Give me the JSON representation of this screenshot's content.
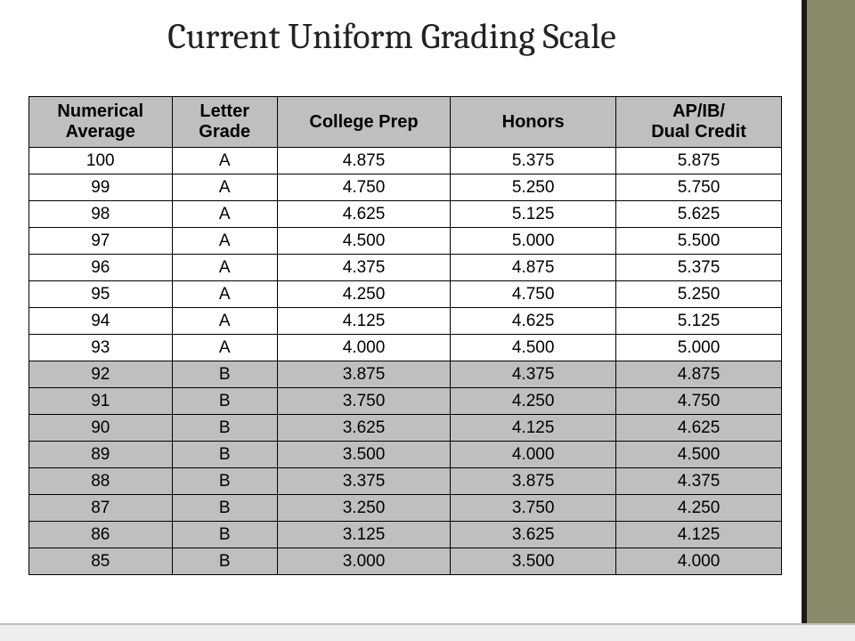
{
  "title": "Current Uniform Grading Scale",
  "table": {
    "type": "table",
    "header_bg": "#bfbfbf",
    "border_color": "#000000",
    "font_family": "Arial",
    "header_fontsize_pt": 15,
    "cell_fontsize_pt": 14,
    "column_widths_pct": [
      19,
      14,
      23,
      22,
      22
    ],
    "columns": [
      "Numerical\nAverage",
      "Letter\nGrade",
      "College Prep",
      "Honors",
      "AP/IB/\nDual Credit"
    ],
    "rows": [
      {
        "cells": [
          "100",
          "A",
          "4.875",
          "5.375",
          "5.875"
        ],
        "shaded": false
      },
      {
        "cells": [
          "99",
          "A",
          "4.750",
          "5.250",
          "5.750"
        ],
        "shaded": false
      },
      {
        "cells": [
          "98",
          "A",
          "4.625",
          "5.125",
          "5.625"
        ],
        "shaded": false
      },
      {
        "cells": [
          "97",
          "A",
          "4.500",
          "5.000",
          "5.500"
        ],
        "shaded": false
      },
      {
        "cells": [
          "96",
          "A",
          "4.375",
          "4.875",
          "5.375"
        ],
        "shaded": false
      },
      {
        "cells": [
          "95",
          "A",
          "4.250",
          "4.750",
          "5.250"
        ],
        "shaded": false
      },
      {
        "cells": [
          "94",
          "A",
          "4.125",
          "4.625",
          "5.125"
        ],
        "shaded": false
      },
      {
        "cells": [
          "93",
          "A",
          "4.000",
          "4.500",
          "5.000"
        ],
        "shaded": false
      },
      {
        "cells": [
          "92",
          "B",
          "3.875",
          "4.375",
          "4.875"
        ],
        "shaded": true
      },
      {
        "cells": [
          "91",
          "B",
          "3.750",
          "4.250",
          "4.750"
        ],
        "shaded": true
      },
      {
        "cells": [
          "90",
          "B",
          "3.625",
          "4.125",
          "4.625"
        ],
        "shaded": true
      },
      {
        "cells": [
          "89",
          "B",
          "3.500",
          "4.000",
          "4.500"
        ],
        "shaded": true
      },
      {
        "cells": [
          "88",
          "B",
          "3.375",
          "3.875",
          "4.375"
        ],
        "shaded": true
      },
      {
        "cells": [
          "87",
          "B",
          "3.250",
          "3.750",
          "4.250"
        ],
        "shaded": true
      },
      {
        "cells": [
          "86",
          "B",
          "3.125",
          "3.625",
          "4.125"
        ],
        "shaded": true
      },
      {
        "cells": [
          "85",
          "B",
          "3.000",
          "3.500",
          "4.000"
        ],
        "shaded": true
      }
    ]
  },
  "decor": {
    "right_stripe_color": "#8a8a6b",
    "right_stripe_border": "#1a1a1a",
    "bottom_strip_color": "#ededed"
  }
}
